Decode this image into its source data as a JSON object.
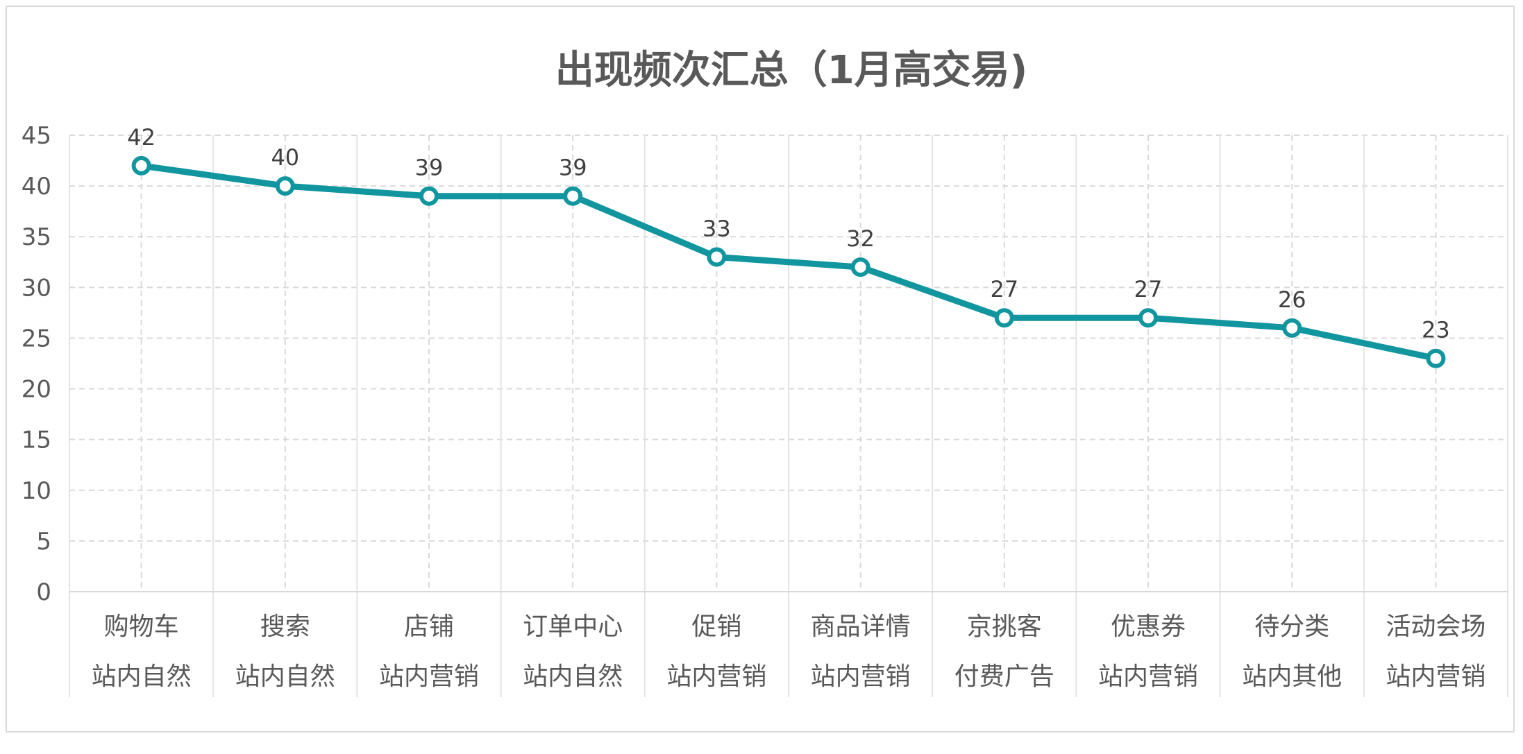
{
  "chart_data": {
    "type": "line",
    "title": "出现频次汇总（1月高交易)",
    "xlabel": "",
    "ylabel": "",
    "ylim": [
      0,
      45
    ],
    "yticks": [
      0,
      5,
      10,
      15,
      20,
      25,
      30,
      35,
      40,
      45
    ],
    "grid": true,
    "legend": "none",
    "categories": [
      [
        "购物车",
        "站内自然"
      ],
      [
        "搜索",
        "站内自然"
      ],
      [
        "店铺",
        "站内营销"
      ],
      [
        "订单中心",
        "站内自然"
      ],
      [
        "促销",
        "站内营销"
      ],
      [
        "商品详情",
        "站内营销"
      ],
      [
        "京挑客",
        "付费广告"
      ],
      [
        "优惠券",
        "站内营销"
      ],
      [
        "待分类",
        "站内其他"
      ],
      [
        "活动会场",
        "站内营销"
      ]
    ],
    "series": [
      {
        "values": [
          42,
          40,
          39,
          39,
          33,
          32,
          27,
          27,
          26,
          23
        ],
        "color": "#1196a0"
      }
    ]
  }
}
